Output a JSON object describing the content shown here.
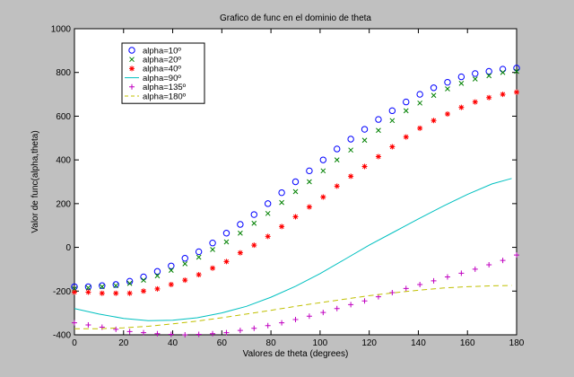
{
  "chart_data": {
    "type": "scatter",
    "title": "Grafico de func en el dominio de theta",
    "xlabel": "Valores de theta (degrees)",
    "ylabel": "Valor de func(alpha,theta)",
    "xlim": [
      0,
      180
    ],
    "ylim": [
      -400,
      1000
    ],
    "xticks": [
      0,
      20,
      40,
      60,
      80,
      100,
      120,
      140,
      160,
      180
    ],
    "yticks": [
      -400,
      -200,
      0,
      200,
      400,
      600,
      800,
      1000
    ],
    "grid": false,
    "legend_position": "top-left",
    "series": [
      {
        "name": "alpha=10º",
        "marker": "circle",
        "color": "#0000ff",
        "x": [
          0,
          5.625,
          11.25,
          16.875,
          22.5,
          28.125,
          33.75,
          39.375,
          45,
          50.625,
          56.25,
          61.875,
          67.5,
          73.125,
          78.75,
          84.375,
          90,
          95.625,
          101.25,
          106.875,
          112.5,
          118.125,
          123.75,
          129.375,
          135,
          140.625,
          146.25,
          151.875,
          157.5,
          163.125,
          168.75,
          174.375,
          180
        ],
        "y": [
          -180,
          -180,
          -175,
          -170,
          -155,
          -135,
          -110,
          -85,
          -50,
          -20,
          20,
          65,
          105,
          150,
          200,
          250,
          300,
          350,
          400,
          450,
          495,
          540,
          585,
          625,
          665,
          700,
          730,
          755,
          780,
          795,
          805,
          815,
          820
        ]
      },
      {
        "name": "alpha=20º",
        "marker": "x",
        "color": "#008000",
        "x": [
          0,
          5.625,
          11.25,
          16.875,
          22.5,
          28.125,
          33.75,
          39.375,
          45,
          50.625,
          56.25,
          61.875,
          67.5,
          73.125,
          78.75,
          84.375,
          90,
          95.625,
          101.25,
          106.875,
          112.5,
          118.125,
          123.75,
          129.375,
          135,
          140.625,
          146.25,
          151.875,
          157.5,
          163.125,
          168.75,
          174.375,
          180
        ],
        "y": [
          -190,
          -185,
          -180,
          -175,
          -165,
          -150,
          -130,
          -105,
          -75,
          -45,
          -10,
          25,
          65,
          110,
          155,
          205,
          255,
          300,
          350,
          400,
          445,
          490,
          535,
          580,
          625,
          660,
          695,
          725,
          750,
          770,
          785,
          800,
          805
        ]
      },
      {
        "name": "alpha=40º",
        "marker": "star",
        "color": "#ff0000",
        "x": [
          0,
          5.625,
          11.25,
          16.875,
          22.5,
          28.125,
          33.75,
          39.375,
          45,
          50.625,
          56.25,
          61.875,
          67.5,
          73.125,
          78.75,
          84.375,
          90,
          95.625,
          101.25,
          106.875,
          112.5,
          118.125,
          123.75,
          129.375,
          135,
          140.625,
          146.25,
          151.875,
          157.5,
          163.125,
          168.75,
          174.375,
          180
        ],
        "y": [
          -205,
          -205,
          -210,
          -210,
          -210,
          -200,
          -190,
          -170,
          -150,
          -125,
          -95,
          -65,
          -25,
          10,
          50,
          95,
          140,
          185,
          230,
          280,
          325,
          370,
          415,
          460,
          505,
          545,
          580,
          610,
          640,
          665,
          685,
          700,
          710
        ]
      },
      {
        "name": "alpha=90º",
        "line": "solid",
        "color": "#00c0c0",
        "x": [
          0,
          10,
          20,
          30,
          40,
          50,
          60,
          70,
          80,
          90,
          100,
          110,
          120,
          130,
          140,
          150,
          160,
          170,
          178
        ],
        "y": [
          -280,
          -305,
          -325,
          -335,
          -333,
          -322,
          -300,
          -270,
          -228,
          -178,
          -120,
          -55,
          10,
          70,
          130,
          188,
          242,
          290,
          315
        ]
      },
      {
        "name": "alpha=135º",
        "marker": "plus",
        "color": "#c000c0",
        "x": [
          0,
          5.625,
          11.25,
          16.875,
          22.5,
          28.125,
          33.75,
          39.375,
          45,
          50.625,
          56.25,
          61.875,
          67.5,
          73.125,
          78.75,
          84.375,
          90,
          95.625,
          101.25,
          106.875,
          112.5,
          118.125,
          123.75,
          129.375,
          135,
          140.625,
          146.25,
          151.875,
          157.5,
          163.125,
          168.75,
          174.375,
          180
        ],
        "y": [
          -345,
          -355,
          -365,
          -375,
          -385,
          -390,
          -395,
          -398,
          -400,
          -398,
          -395,
          -390,
          -380,
          -370,
          -358,
          -345,
          -330,
          -315,
          -298,
          -280,
          -262,
          -245,
          -226,
          -207,
          -188,
          -170,
          -153,
          -135,
          -118,
          -100,
          -80,
          -60,
          -35
        ]
      },
      {
        "name": "alpha=180º",
        "line": "dashed",
        "color": "#c0c000",
        "x": [
          0,
          10,
          20,
          30,
          40,
          50,
          60,
          70,
          80,
          90,
          100,
          110,
          120,
          130,
          140,
          150,
          160,
          170,
          178
        ],
        "y": [
          -372,
          -372,
          -368,
          -361,
          -350,
          -337,
          -322,
          -305,
          -288,
          -270,
          -253,
          -237,
          -221,
          -208,
          -196,
          -186,
          -180,
          -176,
          -174
        ]
      }
    ]
  }
}
